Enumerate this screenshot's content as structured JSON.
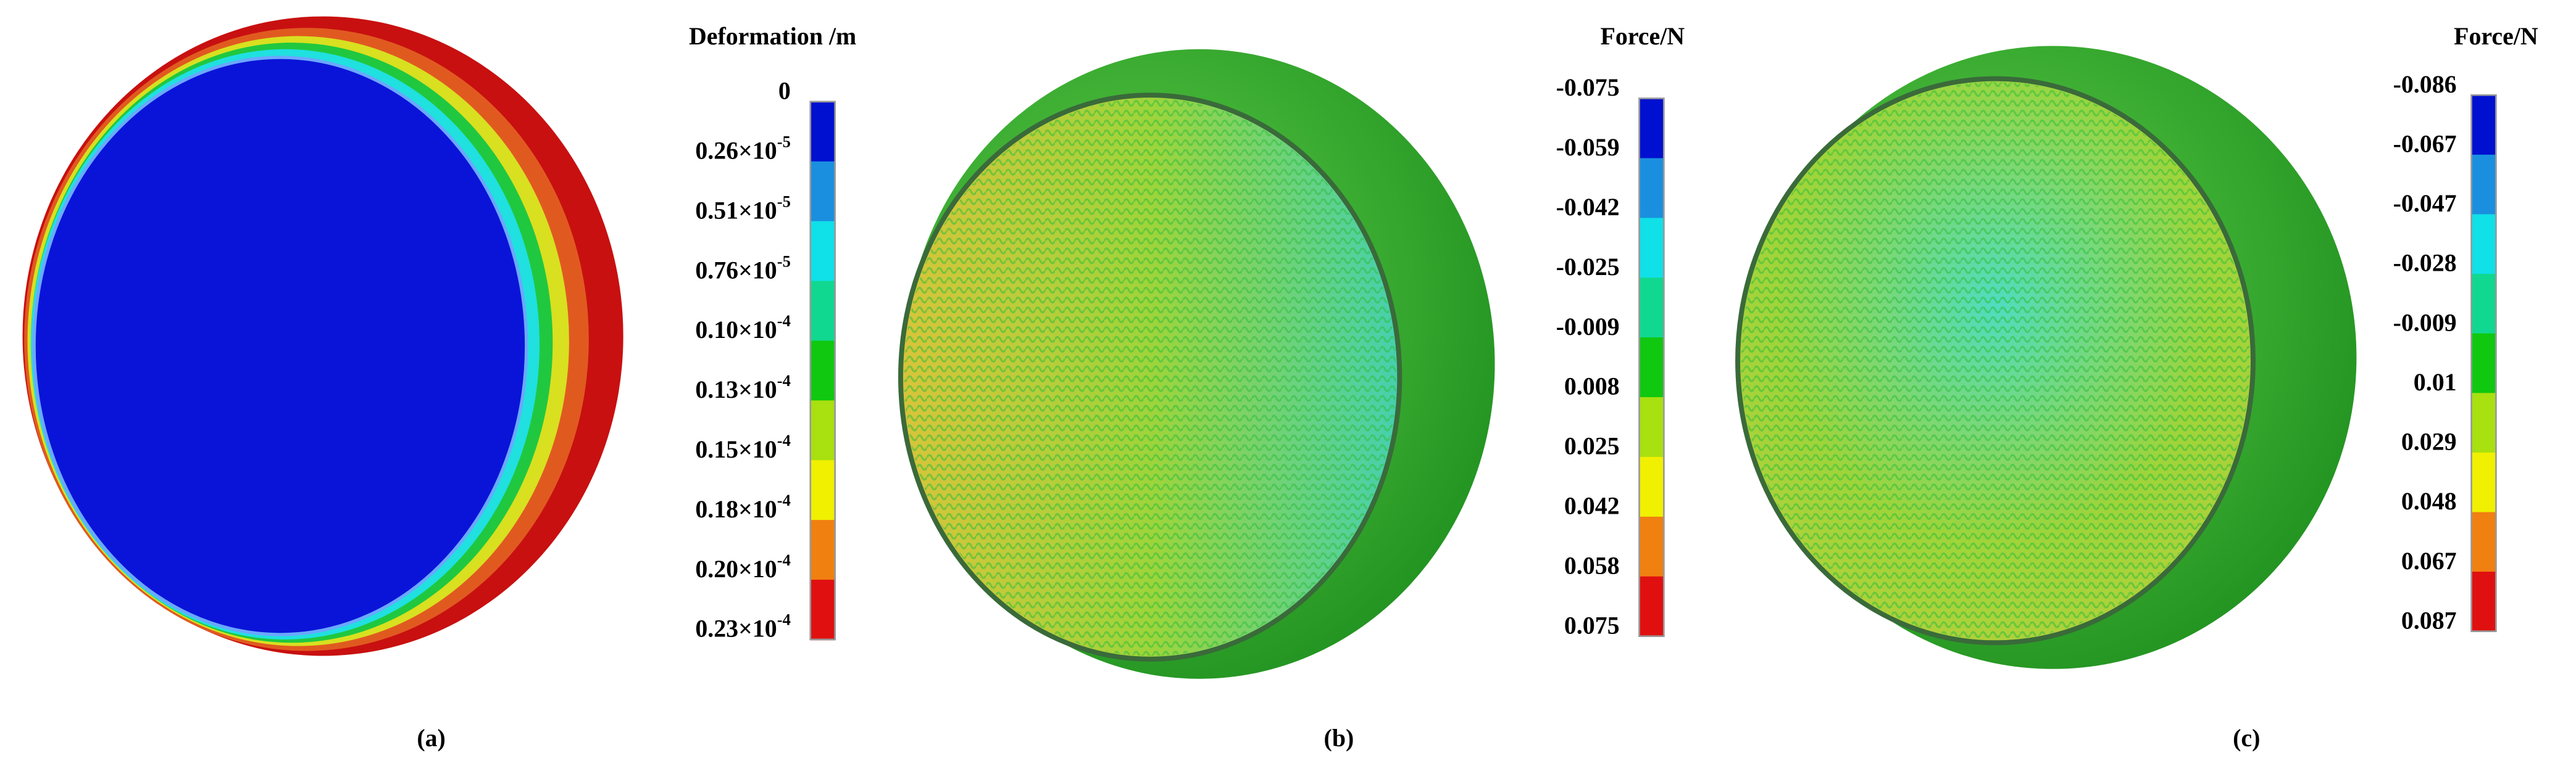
{
  "panels": [
    {
      "legend": {
        "title": "Deformation /m",
        "labels": [
          {
            "text": "0"
          },
          {
            "text": "0.26×10",
            "sup": "-5"
          },
          {
            "text": "0.51×10",
            "sup": "-5"
          },
          {
            "text": "0.76×10",
            "sup": "-5"
          },
          {
            "text": "0.10×10",
            "sup": "-4"
          },
          {
            "text": "0.13×10",
            "sup": "-4"
          },
          {
            "text": "0.15×10",
            "sup": "-4"
          },
          {
            "text": "0.18×10",
            "sup": "-4"
          },
          {
            "text": "0.20×10",
            "sup": "-4"
          },
          {
            "text": "0.23×10",
            "sup": "-4"
          }
        ]
      },
      "caption": "(a)"
    },
    {
      "legend": {
        "title": "Force/N",
        "labels": [
          {
            "text": "-0.075"
          },
          {
            "text": "-0.059"
          },
          {
            "text": "-0.042"
          },
          {
            "text": "-0.025"
          },
          {
            "text": "-0.009"
          },
          {
            "text": "0.008"
          },
          {
            "text": "0.025"
          },
          {
            "text": "0.042"
          },
          {
            "text": "0.058"
          },
          {
            "text": "0.075"
          }
        ]
      },
      "caption": "(b)"
    },
    {
      "legend": {
        "title": "Force/N",
        "labels": [
          {
            "text": "-0.086"
          },
          {
            "text": "-0.067"
          },
          {
            "text": "-0.047"
          },
          {
            "text": "-0.028"
          },
          {
            "text": "-0.009"
          },
          {
            "text": "0.01"
          },
          {
            "text": "0.029"
          },
          {
            "text": "0.048"
          },
          {
            "text": "0.067"
          },
          {
            "text": "0.087"
          }
        ]
      },
      "caption": "(c)"
    }
  ]
}
